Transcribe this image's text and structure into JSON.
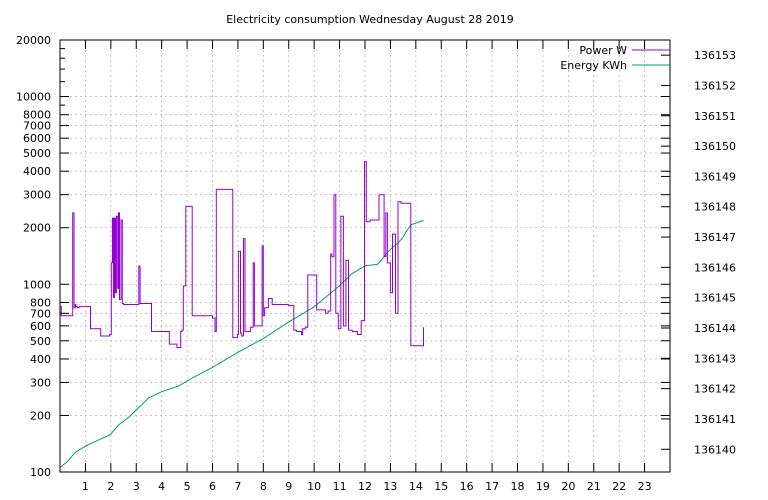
{
  "chart_data": {
    "type": "line",
    "title": "Electricity consumption Wednesday August 28 2019",
    "x_axis": {
      "range": [
        0,
        24
      ],
      "ticks": [
        1,
        2,
        3,
        4,
        5,
        6,
        7,
        8,
        9,
        10,
        11,
        12,
        13,
        14,
        15,
        16,
        17,
        18,
        19,
        20,
        21,
        22,
        23
      ],
      "tick_labels": [
        "1",
        "2",
        "3",
        "4",
        "5",
        "6",
        "7",
        "8",
        "9",
        "10",
        "11",
        "12",
        "13",
        "14",
        "15",
        "16",
        "17",
        "18",
        "19",
        "20",
        "21",
        "22",
        "23"
      ]
    },
    "y_axis_left": {
      "scale": "log",
      "range": [
        100,
        20000
      ],
      "ticks": [
        100,
        200,
        300,
        400,
        500,
        600,
        700,
        800,
        1000,
        2000,
        3000,
        4000,
        5000,
        6000,
        7000,
        8000,
        10000,
        20000
      ],
      "tick_labels": [
        "100",
        "200",
        "300",
        "400",
        "500",
        "600",
        "700",
        "800",
        "1000",
        "2000",
        "3000",
        "4000",
        "5000",
        "6000",
        "7000",
        "8000",
        "10000",
        "20000"
      ]
    },
    "y_axis_right": {
      "scale": "linear",
      "range": [
        136139.25,
        136153.5
      ],
      "ticks": [
        136140,
        136141,
        136142,
        136143,
        136144,
        136145,
        136146,
        136147,
        136148,
        136149,
        136150,
        136151,
        136152,
        136153
      ],
      "tick_labels": [
        "136140",
        "136141",
        "136142",
        "136143",
        "136144",
        "136145",
        "136146",
        "136147",
        "136148",
        "136149",
        "136150",
        "136151",
        "136152",
        "136153"
      ]
    },
    "grid": true,
    "legend_position": "top-right",
    "series": [
      {
        "name": "Power W",
        "color": "#9400d3",
        "axis": "left",
        "step": true,
        "x": [
          0,
          0.05,
          0.5,
          0.55,
          0.6,
          0.63,
          0.68,
          0.75,
          1.2,
          1.35,
          1.6,
          1.95,
          2.02,
          2.06,
          2.1,
          2.14,
          2.18,
          2.22,
          2.27,
          2.3,
          2.34,
          2.4,
          2.45,
          2.5,
          2.55,
          3.05,
          3.1,
          3.15,
          3.6,
          4.3,
          4.6,
          4.75,
          4.8,
          4.85,
          4.95,
          5.2,
          6.0,
          6.1,
          6.15,
          6.8,
          6.98,
          7.02,
          7.1,
          7.15,
          7.22,
          7.28,
          7.5,
          7.6,
          7.65,
          7.9,
          7.95,
          8.0,
          8.05,
          8.2,
          8.35,
          8.5,
          9.0,
          9.2,
          9.3,
          9.5,
          9.55,
          9.65,
          9.75,
          10.1,
          10.45,
          10.55,
          10.65,
          10.7,
          10.78,
          10.85,
          10.95,
          11.05,
          11.15,
          11.25,
          11.35,
          11.5,
          11.7,
          11.85,
          11.98,
          12.05,
          12.2,
          12.55,
          12.65,
          12.75,
          12.82,
          12.88,
          13.0,
          13.08,
          13.2,
          13.3,
          13.42,
          13.55,
          13.8,
          14.0,
          14.3
        ],
        "y": [
          760,
          680,
          2400,
          750,
          780,
          760,
          750,
          760,
          580,
          580,
          530,
          540,
          1300,
          2250,
          850,
          2250,
          900,
          2300,
          950,
          2400,
          830,
          2200,
          790,
          780,
          780,
          780,
          1250,
          790,
          560,
          480,
          460,
          560,
          570,
          980,
          2600,
          680,
          660,
          560,
          3200,
          520,
          540,
          1500,
          550,
          530,
          1750,
          560,
          590,
          1300,
          600,
          600,
          1600,
          680,
          750,
          840,
          780,
          780,
          770,
          570,
          560,
          540,
          580,
          590,
          1120,
          730,
          700,
          720,
          1450,
          1400,
          3000,
          700,
          580,
          2300,
          600,
          1340,
          570,
          560,
          540,
          640,
          4500,
          2150,
          2200,
          3000,
          3000,
          1400,
          2400,
          1300,
          900,
          1850,
          700,
          2750,
          2700,
          2700,
          470,
          470,
          590
        ]
      },
      {
        "name": "Energy KWh",
        "color": "#009e73",
        "axis": "right",
        "step": false,
        "x": [
          0,
          0.3,
          0.6,
          1.0,
          1.5,
          1.9,
          2.0,
          2.3,
          2.7,
          3.0,
          3.5,
          4.0,
          4.7,
          5.2,
          6.0,
          7.0,
          8.0,
          9.0,
          10.0,
          11.0,
          11.5,
          12.0,
          12.5,
          13.0,
          13.3,
          13.5,
          13.6,
          13.8,
          14.3
        ],
        "y": [
          136139.4,
          136139.6,
          136139.9,
          136140.1,
          136140.3,
          136140.45,
          136140.5,
          136140.8,
          136141.05,
          136141.3,
          136141.7,
          136141.9,
          136142.1,
          136142.35,
          136142.7,
          136143.2,
          136143.65,
          136144.2,
          136144.7,
          136145.4,
          136145.8,
          136146.05,
          136146.1,
          136146.6,
          136146.8,
          136147.0,
          136147.15,
          136147.4,
          136147.55
        ]
      }
    ]
  }
}
